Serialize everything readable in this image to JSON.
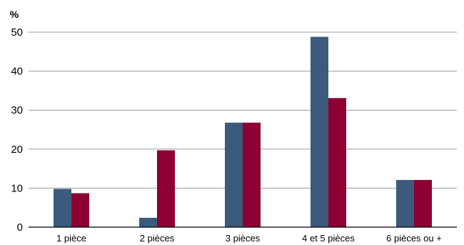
{
  "chart_data": {
    "type": "bar",
    "title": "",
    "ylabel": "%",
    "xlabel": "",
    "ylim": [
      0,
      50
    ],
    "yticks": [
      0,
      10,
      20,
      30,
      40,
      50
    ],
    "grid": true,
    "legend": "none",
    "categories": [
      "1 pièce",
      "2 pièces",
      "3 pièces",
      "4 et 5 pièces",
      "6 pièces ou +"
    ],
    "series": [
      {
        "color": "#3c5b7c",
        "values": [
          9.8,
          2.4,
          26.8,
          48.8,
          12.1
        ]
      },
      {
        "color": "#8e0033",
        "values": [
          8.7,
          19.7,
          26.8,
          33.1,
          12.1
        ]
      }
    ]
  }
}
